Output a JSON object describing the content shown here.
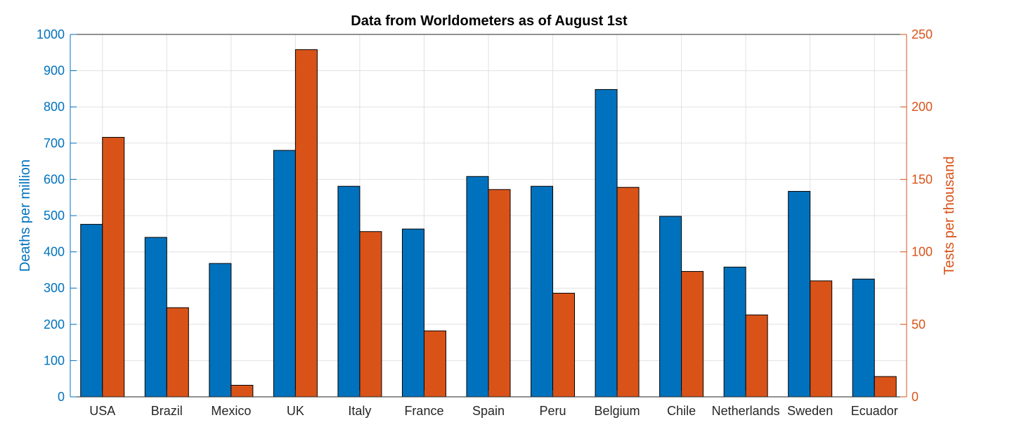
{
  "colors": {
    "left_series": "#0072BD",
    "right_series": "#D95319",
    "axis": "#262626",
    "grid": "#e1e1e1"
  },
  "chart_data": {
    "type": "bar",
    "title": "Data from Worldometers as of August 1st",
    "categories": [
      "USA",
      "Brazil",
      "Mexico",
      "UK",
      "Italy",
      "France",
      "Spain",
      "Peru",
      "Belgium",
      "Chile",
      "Netherlands",
      "Sweden",
      "Ecuador"
    ],
    "series": [
      {
        "axis": "left",
        "values": [
          476,
          440,
          368,
          680,
          581,
          463,
          608,
          581,
          848,
          498,
          358,
          567,
          325
        ]
      },
      {
        "axis": "right",
        "values": [
          179,
          61.5,
          8,
          239.5,
          114,
          45.5,
          143,
          71.5,
          144.5,
          86.5,
          56.5,
          80,
          14
        ]
      }
    ],
    "ylabel_left": "Deaths per million",
    "ylabel_right": "Tests per thousand",
    "ylim_left": [
      0,
      1000
    ],
    "ylim_right": [
      0,
      250
    ],
    "yticks_left": [
      "0",
      "100",
      "200",
      "300",
      "400",
      "500",
      "600",
      "700",
      "800",
      "900",
      "1000"
    ],
    "yticks_right": [
      "0",
      "50",
      "100",
      "150",
      "200",
      "250"
    ],
    "grid": true
  }
}
